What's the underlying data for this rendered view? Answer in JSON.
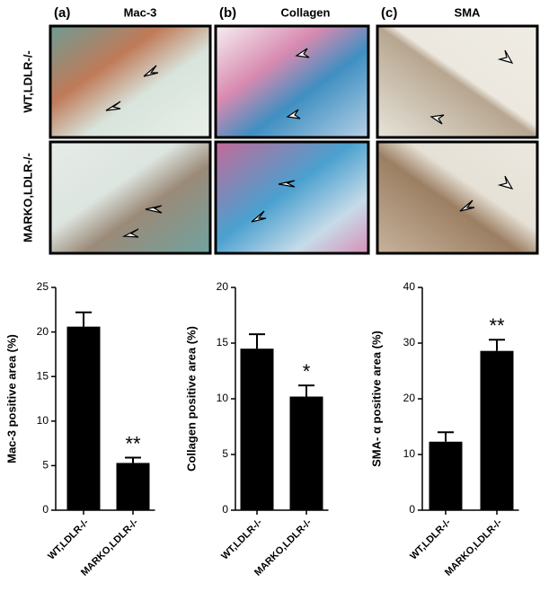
{
  "panels": [
    {
      "letter": "(a)",
      "title": "Mac-3"
    },
    {
      "letter": "(b)",
      "title": "Collagen"
    },
    {
      "letter": "(c)",
      "title": "SMA"
    }
  ],
  "rows": [
    "WT,LDLR-/-",
    "MARKO,LDLR-/-"
  ],
  "chart_data": [
    {
      "type": "bar",
      "ylabel": "Mac-3 positive area (%)",
      "categories": [
        "WT,LDLR-/-",
        "MARKO,LDLR-/-"
      ],
      "values": [
        20.6,
        5.3
      ],
      "errors": [
        1.6,
        0.6
      ],
      "color": "#000000",
      "ylim": [
        0,
        25
      ],
      "yticks": [
        0,
        5,
        10,
        15,
        20,
        25
      ],
      "annotation": "**"
    },
    {
      "type": "bar",
      "ylabel": "Collagen positive area (%)",
      "categories": [
        "WT,LDLR-/-",
        "MARKO,LDLR-/-"
      ],
      "values": [
        14.5,
        10.2
      ],
      "errors": [
        1.3,
        1.0
      ],
      "color": "#000000",
      "ylim": [
        0,
        20
      ],
      "yticks": [
        0,
        5,
        10,
        15,
        20
      ],
      "annotation": "*"
    },
    {
      "type": "bar",
      "ylabel": "SMA- α positive area (%)",
      "categories": [
        "WT,LDLR-/-",
        "MARKO,LDLR-/-"
      ],
      "values": [
        12.3,
        28.6
      ],
      "errors": [
        1.7,
        2.0
      ],
      "color": "#000000",
      "ylim": [
        0,
        40
      ],
      "yticks": [
        0,
        10,
        20,
        30,
        40
      ],
      "annotation": "**"
    }
  ]
}
